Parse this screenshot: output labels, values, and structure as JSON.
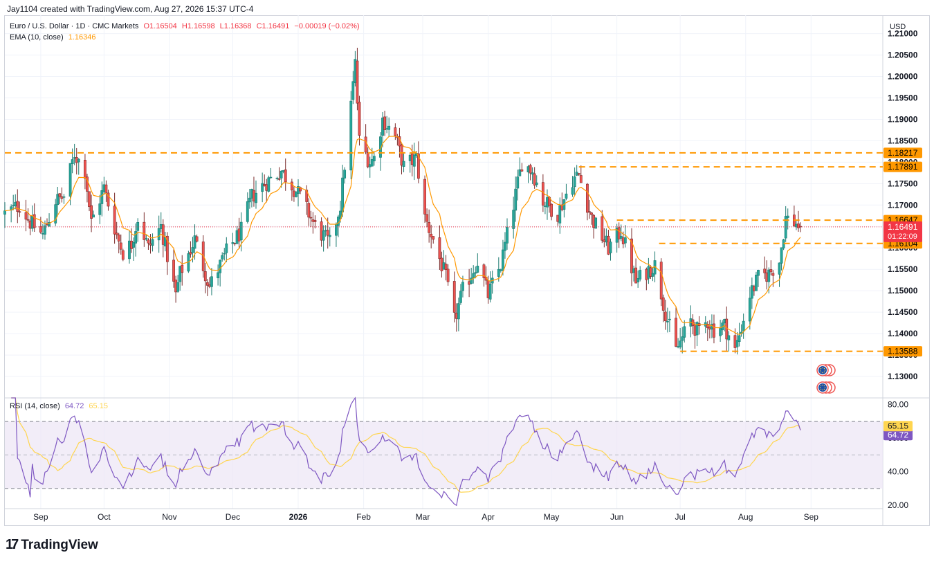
{
  "header": {
    "credit": "Jay1104 created with TradingView.com, Aug 27, 2026 15:37 UTC-4"
  },
  "legend": {
    "pair_title": "Euro / U.S. Dollar · 1D · CMC Markets",
    "open": "O1.16504",
    "high": "H1.16598",
    "low": "L1.16368",
    "close": "C1.16491",
    "change": "−0.00019 (−0.02%)",
    "ema_label": "EMA (10, close)",
    "ema_value": "1.16346",
    "rsi_label": "RSI (14, close)",
    "rsi_value": "64.72",
    "rsi_ma_value": "65.15"
  },
  "axis": {
    "currency": "USD"
  },
  "footer": {
    "brand": "TradingView",
    "logo_icon": "tradingview-logo-icon"
  },
  "colors": {
    "up": "#26a69a",
    "down": "#ef5350",
    "ema": "#ff9800",
    "level": "#ff9800",
    "rsi": "#7e57c2",
    "rsi_ma": "#ffd54f",
    "rsi_band": "#ede7f6",
    "current_price": "#f23645"
  },
  "chart_data": [
    {
      "type": "candlestick",
      "title": "Euro / U.S. Dollar · 1D · CMC Markets",
      "ylim": [
        1.125,
        1.213
      ],
      "y_ticks": [
        "1.21000",
        "1.20500",
        "1.20000",
        "1.19500",
        "1.19000",
        "1.18500",
        "1.18000",
        "1.17500",
        "1.17000",
        "1.16500",
        "1.16000",
        "1.15500",
        "1.15000",
        "1.14500",
        "1.14000",
        "1.13500",
        "1.13000"
      ],
      "x_tick_labels": [
        {
          "label": "Sep",
          "date": "2025-09-01",
          "bold": false
        },
        {
          "label": "Oct",
          "date": "2025-10-01",
          "bold": false
        },
        {
          "label": "Nov",
          "date": "2025-11-01",
          "bold": false
        },
        {
          "label": "Dec",
          "date": "2025-12-01",
          "bold": false
        },
        {
          "label": "2026",
          "date": "2026-01-01",
          "bold": true
        },
        {
          "label": "Feb",
          "date": "2026-02-01",
          "bold": false
        },
        {
          "label": "Mar",
          "date": "2026-03-01",
          "bold": false
        },
        {
          "label": "Apr",
          "date": "2026-04-01",
          "bold": false
        },
        {
          "label": "May",
          "date": "2026-05-01",
          "bold": false
        },
        {
          "label": "Jun",
          "date": "2026-06-01",
          "bold": false
        },
        {
          "label": "Jul",
          "date": "2026-07-01",
          "bold": false
        },
        {
          "label": "Aug",
          "date": "2026-08-01",
          "bold": false
        },
        {
          "label": "Sep",
          "date": "2026-09-01",
          "bold": false
        }
      ],
      "x_range": [
        "2025-08-15",
        "2026-10-05"
      ],
      "data_range": [
        "2025-08-15",
        "2026-08-27"
      ],
      "anchors": [
        {
          "date": "2025-08-15",
          "close": 1.168
        },
        {
          "date": "2025-08-22",
          "close": 1.17
        },
        {
          "date": "2025-08-27",
          "close": 1.166
        },
        {
          "date": "2025-09-02",
          "close": 1.163
        },
        {
          "date": "2025-09-08",
          "close": 1.171
        },
        {
          "date": "2025-09-12",
          "close": 1.172
        },
        {
          "date": "2025-09-17",
          "close": 1.182
        },
        {
          "date": "2025-09-22",
          "close": 1.178
        },
        {
          "date": "2025-09-25",
          "close": 1.166
        },
        {
          "date": "2025-10-01",
          "close": 1.174
        },
        {
          "date": "2025-10-07",
          "close": 1.163
        },
        {
          "date": "2025-10-10",
          "close": 1.159
        },
        {
          "date": "2025-10-14",
          "close": 1.161
        },
        {
          "date": "2025-10-17",
          "close": 1.167
        },
        {
          "date": "2025-10-22",
          "close": 1.16
        },
        {
          "date": "2025-10-28",
          "close": 1.165
        },
        {
          "date": "2025-11-04",
          "close": 1.149
        },
        {
          "date": "2025-11-06",
          "close": 1.154
        },
        {
          "date": "2025-11-13",
          "close": 1.162
        },
        {
          "date": "2025-11-20",
          "close": 1.151
        },
        {
          "date": "2025-11-28",
          "close": 1.159
        },
        {
          "date": "2025-12-05",
          "close": 1.164
        },
        {
          "date": "2025-12-10",
          "close": 1.172
        },
        {
          "date": "2025-12-16",
          "close": 1.175
        },
        {
          "date": "2025-12-24",
          "close": 1.178
        },
        {
          "date": "2026-01-02",
          "close": 1.172
        },
        {
          "date": "2026-01-09",
          "close": 1.165
        },
        {
          "date": "2026-01-16",
          "close": 1.161
        },
        {
          "date": "2026-01-21",
          "close": 1.17
        },
        {
          "date": "2026-01-27",
          "close": 1.198
        },
        {
          "date": "2026-01-28",
          "close": 1.203
        },
        {
          "date": "2026-01-30",
          "close": 1.185
        },
        {
          "date": "2026-02-04",
          "close": 1.18
        },
        {
          "date": "2026-02-06",
          "close": 1.181
        },
        {
          "date": "2026-02-10",
          "close": 1.19
        },
        {
          "date": "2026-02-16",
          "close": 1.186
        },
        {
          "date": "2026-02-20",
          "close": 1.179
        },
        {
          "date": "2026-02-26",
          "close": 1.181
        },
        {
          "date": "2026-03-02",
          "close": 1.167
        },
        {
          "date": "2026-03-06",
          "close": 1.162
        },
        {
          "date": "2026-03-12",
          "close": 1.153
        },
        {
          "date": "2026-03-16",
          "close": 1.143
        },
        {
          "date": "2026-03-20",
          "close": 1.15
        },
        {
          "date": "2026-03-27",
          "close": 1.157
        },
        {
          "date": "2026-04-01",
          "close": 1.149
        },
        {
          "date": "2026-04-07",
          "close": 1.156
        },
        {
          "date": "2026-04-13",
          "close": 1.17
        },
        {
          "date": "2026-04-17",
          "close": 1.18
        },
        {
          "date": "2026-04-22",
          "close": 1.178
        },
        {
          "date": "2026-04-27",
          "close": 1.171
        },
        {
          "date": "2026-05-04",
          "close": 1.168
        },
        {
          "date": "2026-05-11",
          "close": 1.176
        },
        {
          "date": "2026-05-14",
          "close": 1.177
        },
        {
          "date": "2026-05-20",
          "close": 1.167
        },
        {
          "date": "2026-05-28",
          "close": 1.16
        },
        {
          "date": "2026-06-03",
          "close": 1.164
        },
        {
          "date": "2026-06-10",
          "close": 1.152
        },
        {
          "date": "2026-06-16",
          "close": 1.155
        },
        {
          "date": "2026-06-19",
          "close": 1.156
        },
        {
          "date": "2026-06-24",
          "close": 1.145
        },
        {
          "date": "2026-06-29",
          "close": 1.136
        },
        {
          "date": "2026-07-06",
          "close": 1.143
        },
        {
          "date": "2026-07-10",
          "close": 1.14
        },
        {
          "date": "2026-07-14",
          "close": 1.143
        },
        {
          "date": "2026-07-17",
          "close": 1.141
        },
        {
          "date": "2026-07-22",
          "close": 1.142
        },
        {
          "date": "2026-07-27",
          "close": 1.136
        },
        {
          "date": "2026-08-03",
          "close": 1.149
        },
        {
          "date": "2026-08-07",
          "close": 1.153
        },
        {
          "date": "2026-08-12",
          "close": 1.154
        },
        {
          "date": "2026-08-17",
          "close": 1.157
        },
        {
          "date": "2026-08-20",
          "close": 1.167
        },
        {
          "date": "2026-08-24",
          "close": 1.166
        },
        {
          "date": "2026-08-27",
          "close": 1.16491
        }
      ],
      "ema": {
        "period": 10,
        "last": 1.16346
      },
      "levels": [
        {
          "value": 1.18217,
          "label": "1.18217",
          "from_date": "2025-08-15"
        },
        {
          "value": 1.17891,
          "label": "1.17891",
          "from_date": "2026-05-14"
        },
        {
          "value": 1.16647,
          "label": "1.16647",
          "from_date": "2026-06-01"
        },
        {
          "value": 1.16104,
          "label": "1.16104",
          "from_date": "2026-06-21"
        },
        {
          "value": 1.13588,
          "label": "1.13588",
          "from_date": "2026-07-01"
        }
      ],
      "price_tags": [
        {
          "value": 1.18217,
          "label": "1.18217",
          "color": "#ff9800",
          "text_color": "#000000"
        },
        {
          "value": 1.17891,
          "label": "1.17891",
          "color": "#ff9800",
          "text_color": "#000000"
        },
        {
          "value": 1.16647,
          "label": "1.16647",
          "color": "#ff9800",
          "text_color": "#000000"
        },
        {
          "value": 1.16346,
          "label": "1.16346",
          "color": "#ff9800",
          "text_color": "#000000"
        },
        {
          "value": 1.16104,
          "label": "1.16104",
          "color": "#ff9800",
          "text_color": "#000000"
        },
        {
          "value": 1.13588,
          "label": "1.13588",
          "color": "#ff9800",
          "text_color": "#000000"
        }
      ],
      "current_price": {
        "value": 1.16491,
        "label": "1.16491",
        "countdown": "01:22:09"
      }
    },
    {
      "type": "line",
      "title": "RSI (14, close)",
      "ylim": [
        18,
        84
      ],
      "y_ticks": [
        "80.00",
        "60.00",
        "40.00",
        "20.00"
      ],
      "band": [
        30,
        70
      ],
      "midline": 50,
      "series": [
        {
          "name": "RSI",
          "last": 64.72,
          "label": "64.72"
        },
        {
          "name": "RSI MA",
          "last": 65.15,
          "label": "65.15"
        }
      ]
    }
  ]
}
